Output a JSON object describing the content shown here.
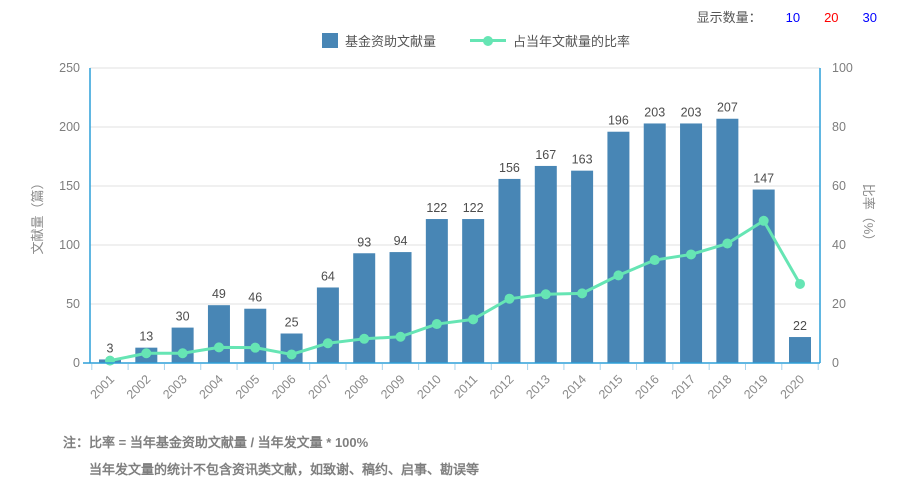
{
  "header": {
    "label": "显示数量：",
    "selected": "20",
    "options": [
      {
        "label": "10",
        "color": "#0000ff"
      },
      {
        "label": "20",
        "color": "#ff0000"
      },
      {
        "label": "30",
        "color": "#0000ff"
      }
    ]
  },
  "legend": [
    {
      "label": "基金资助文献量",
      "type": "bar"
    },
    {
      "label": "占当年文献量的比率",
      "type": "line"
    }
  ],
  "notes": {
    "prefix": "注：",
    "line1": "比率 = 当年基金资助文献量 / 当年发文量 * 100%",
    "line2": "当年发文量的统计不包含资讯类文献，如致谢、稿约、启事、勘误等"
  },
  "chart_data": {
    "type": "bar",
    "categories": [
      "2001",
      "2002",
      "2003",
      "2004",
      "2005",
      "2006",
      "2007",
      "2008",
      "2009",
      "2010",
      "2011",
      "2012",
      "2013",
      "2014",
      "2015",
      "2016",
      "2017",
      "2018",
      "2019",
      "2020"
    ],
    "series": [
      {
        "name": "基金资助文献量",
        "type": "bar",
        "axis": "left",
        "color": "#4886b5",
        "values": [
          3,
          13,
          30,
          49,
          46,
          25,
          64,
          93,
          94,
          122,
          122,
          156,
          167,
          163,
          196,
          203,
          203,
          207,
          147,
          22
        ]
      },
      {
        "name": "占当年文献量的比率",
        "type": "line",
        "axis": "right",
        "color": "#66e5b4",
        "values": [
          0.8,
          3.3,
          3.3,
          5.3,
          5.2,
          2.9,
          6.7,
          8.2,
          8.9,
          13.2,
          14.8,
          21.8,
          23.3,
          23.6,
          29.7,
          34.9,
          36.8,
          40.5,
          48.2,
          26.8
        ]
      }
    ],
    "left_axis": {
      "label": "文献量（篇）",
      "range": [
        0,
        250
      ],
      "ticks": [
        0,
        50,
        100,
        150,
        200,
        250
      ]
    },
    "right_axis": {
      "label": "比率（%）",
      "range": [
        0,
        100
      ],
      "ticks": [
        0,
        20,
        40,
        60,
        80,
        100
      ]
    },
    "grid": true,
    "legend_position": "top",
    "colors": {
      "axis_line": "#2d9fd8",
      "gridline": "#e2e2e2",
      "tick": "#a5d3ec",
      "value_label": "#4d4d4d",
      "axis_text": "#8a8a8a"
    }
  }
}
